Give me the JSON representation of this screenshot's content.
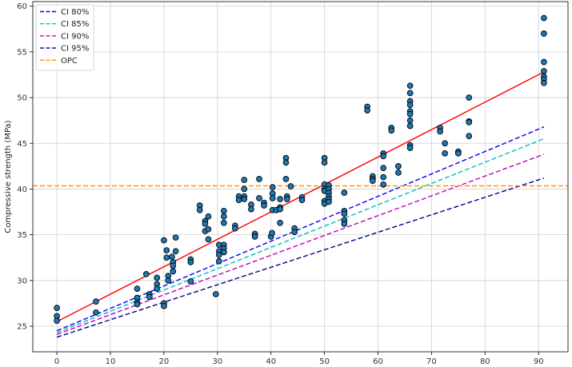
{
  "chart_data": {
    "type": "scatter",
    "title": "",
    "xlabel": "",
    "ylabel": "Compressive strength (MPa)",
    "xlim": [
      -4.5,
      95.5
    ],
    "ylim": [
      22.2,
      60.5
    ],
    "xticks": [
      0,
      10,
      20,
      30,
      40,
      50,
      60,
      70,
      80,
      90
    ],
    "yticks": [
      25,
      30,
      35,
      40,
      45,
      50,
      55,
      60
    ],
    "grid": true,
    "legend_position": "top-left",
    "scatter": {
      "color": "#1f77b4",
      "edgecolor": "#000000",
      "points": [
        [
          0,
          27.0
        ],
        [
          0,
          26.1
        ],
        [
          0,
          25.6
        ],
        [
          7.3,
          27.7
        ],
        [
          7.3,
          26.5
        ],
        [
          15,
          29.1
        ],
        [
          15,
          28.1
        ],
        [
          15,
          27.6
        ],
        [
          15,
          27.4
        ],
        [
          16.7,
          30.7
        ],
        [
          17.3,
          28.5
        ],
        [
          17.3,
          28.2
        ],
        [
          18.7,
          30.3
        ],
        [
          18.7,
          29.6
        ],
        [
          18.7,
          29.1
        ],
        [
          20,
          34.4
        ],
        [
          20,
          27.5
        ],
        [
          20,
          27.2
        ],
        [
          20.5,
          33.3
        ],
        [
          20.5,
          32.5
        ],
        [
          20.8,
          30.5
        ],
        [
          20.8,
          30.0
        ],
        [
          21.5,
          32.6
        ],
        [
          21.7,
          32.0
        ],
        [
          21.7,
          31.6
        ],
        [
          21.7,
          31.0
        ],
        [
          22.2,
          34.7
        ],
        [
          22.2,
          33.2
        ],
        [
          25,
          32.3
        ],
        [
          25,
          32.0
        ],
        [
          25,
          29.9
        ],
        [
          26.7,
          38.2
        ],
        [
          26.7,
          37.7
        ],
        [
          27.7,
          36.5
        ],
        [
          27.7,
          36.2
        ],
        [
          27.7,
          35.4
        ],
        [
          28.3,
          37.0
        ],
        [
          28.3,
          34.5
        ],
        [
          28.3,
          35.6
        ],
        [
          29.7,
          28.5
        ],
        [
          30.3,
          33.9
        ],
        [
          30.3,
          33.2
        ],
        [
          30.3,
          32.8
        ],
        [
          30.3,
          32.1
        ],
        [
          31.2,
          37.6
        ],
        [
          31.2,
          37.0
        ],
        [
          31.2,
          36.3
        ],
        [
          31.2,
          33.9
        ],
        [
          31.2,
          33.5
        ],
        [
          31.2,
          33.1
        ],
        [
          33.3,
          36.0
        ],
        [
          33.3,
          35.7
        ],
        [
          34.0,
          39.2
        ],
        [
          34.0,
          38.8
        ],
        [
          35.0,
          41.0
        ],
        [
          35.0,
          40.0
        ],
        [
          35.0,
          39.2
        ],
        [
          35.0,
          38.9
        ],
        [
          36.3,
          38.3
        ],
        [
          36.3,
          37.8
        ],
        [
          37.0,
          35.1
        ],
        [
          37.0,
          34.8
        ],
        [
          37.8,
          41.1
        ],
        [
          37.8,
          39.0
        ],
        [
          38.7,
          38.5
        ],
        [
          38.7,
          38.2
        ],
        [
          40.0,
          34.8
        ],
        [
          40.2,
          35.2
        ],
        [
          40.3,
          40.2
        ],
        [
          40.3,
          39.5
        ],
        [
          40.3,
          39.0
        ],
        [
          40.3,
          37.7
        ],
        [
          41.0,
          37.7
        ],
        [
          41.7,
          38.9
        ],
        [
          41.7,
          38.0
        ],
        [
          41.7,
          37.8
        ],
        [
          41.7,
          36.3
        ],
        [
          42.8,
          43.4
        ],
        [
          42.8,
          42.9
        ],
        [
          42.8,
          41.1
        ],
        [
          43.0,
          39.2
        ],
        [
          43.0,
          38.9
        ],
        [
          43.7,
          40.3
        ],
        [
          44.4,
          35.7
        ],
        [
          44.4,
          35.3
        ],
        [
          45.8,
          39.1
        ],
        [
          45.8,
          38.8
        ],
        [
          50.0,
          43.4
        ],
        [
          50.0,
          42.9
        ],
        [
          50.0,
          40.5
        ],
        [
          50.0,
          40.0
        ],
        [
          50.0,
          39.8
        ],
        [
          50.0,
          38.7
        ],
        [
          50.0,
          38.4
        ],
        [
          50.8,
          40.4
        ],
        [
          50.8,
          40.0
        ],
        [
          50.8,
          39.6
        ],
        [
          50.8,
          39.2
        ],
        [
          50.8,
          38.9
        ],
        [
          50.8,
          38.6
        ],
        [
          53.7,
          39.6
        ],
        [
          53.7,
          37.6
        ],
        [
          53.7,
          37.3
        ],
        [
          53.7,
          36.6
        ],
        [
          53.7,
          36.2
        ],
        [
          58.0,
          49.0
        ],
        [
          58.0,
          48.6
        ],
        [
          59.0,
          41.4
        ],
        [
          59.0,
          41.1
        ],
        [
          59.0,
          40.9
        ],
        [
          61.0,
          43.9
        ],
        [
          61.0,
          43.6
        ],
        [
          61.0,
          42.3
        ],
        [
          61.0,
          41.3
        ],
        [
          61.0,
          40.5
        ],
        [
          62.5,
          46.7
        ],
        [
          62.5,
          46.4
        ],
        [
          63.8,
          42.5
        ],
        [
          63.8,
          41.8
        ],
        [
          66.0,
          51.3
        ],
        [
          66.0,
          50.5
        ],
        [
          66.0,
          49.6
        ],
        [
          66.0,
          49.2
        ],
        [
          66.0,
          48.5
        ],
        [
          66.0,
          48.2
        ],
        [
          66.0,
          47.5
        ],
        [
          66.0,
          46.9
        ],
        [
          66.0,
          44.8
        ],
        [
          66.0,
          44.5
        ],
        [
          71.6,
          46.7
        ],
        [
          71.6,
          46.3
        ],
        [
          72.5,
          45.0
        ],
        [
          72.5,
          43.9
        ],
        [
          75.0,
          44.1
        ],
        [
          75.0,
          43.9
        ],
        [
          77.0,
          50.0
        ],
        [
          77.0,
          47.4
        ],
        [
          77.0,
          47.3
        ],
        [
          77.0,
          45.8
        ],
        [
          91.0,
          58.7
        ],
        [
          91.0,
          57.0
        ],
        [
          91.0,
          53.9
        ],
        [
          91.0,
          52.9
        ],
        [
          91.0,
          52.3
        ],
        [
          91.0,
          52.0
        ],
        [
          91.0,
          51.6
        ]
      ]
    },
    "fit_line": {
      "color": "#ff0000",
      "x": [
        0,
        91
      ],
      "y": [
        25.5,
        52.8
      ]
    },
    "series": [
      {
        "name": "CI 80%",
        "color": "#0000ff",
        "x": [
          0,
          91
        ],
        "y": [
          24.5,
          46.8
        ]
      },
      {
        "name": "CI 85%",
        "color": "#00bfbf",
        "x": [
          0,
          91
        ],
        "y": [
          24.3,
          45.5
        ]
      },
      {
        "name": "CI 90%",
        "color": "#bf00bf",
        "x": [
          0,
          91
        ],
        "y": [
          24.1,
          43.8
        ]
      },
      {
        "name": "CI 95%",
        "color": "#00008b",
        "x": [
          0,
          91
        ],
        "y": [
          23.8,
          41.2
        ]
      },
      {
        "name": "OPC",
        "color": "#ff8c00",
        "y": 40.35,
        "horizontal": true
      }
    ]
  }
}
